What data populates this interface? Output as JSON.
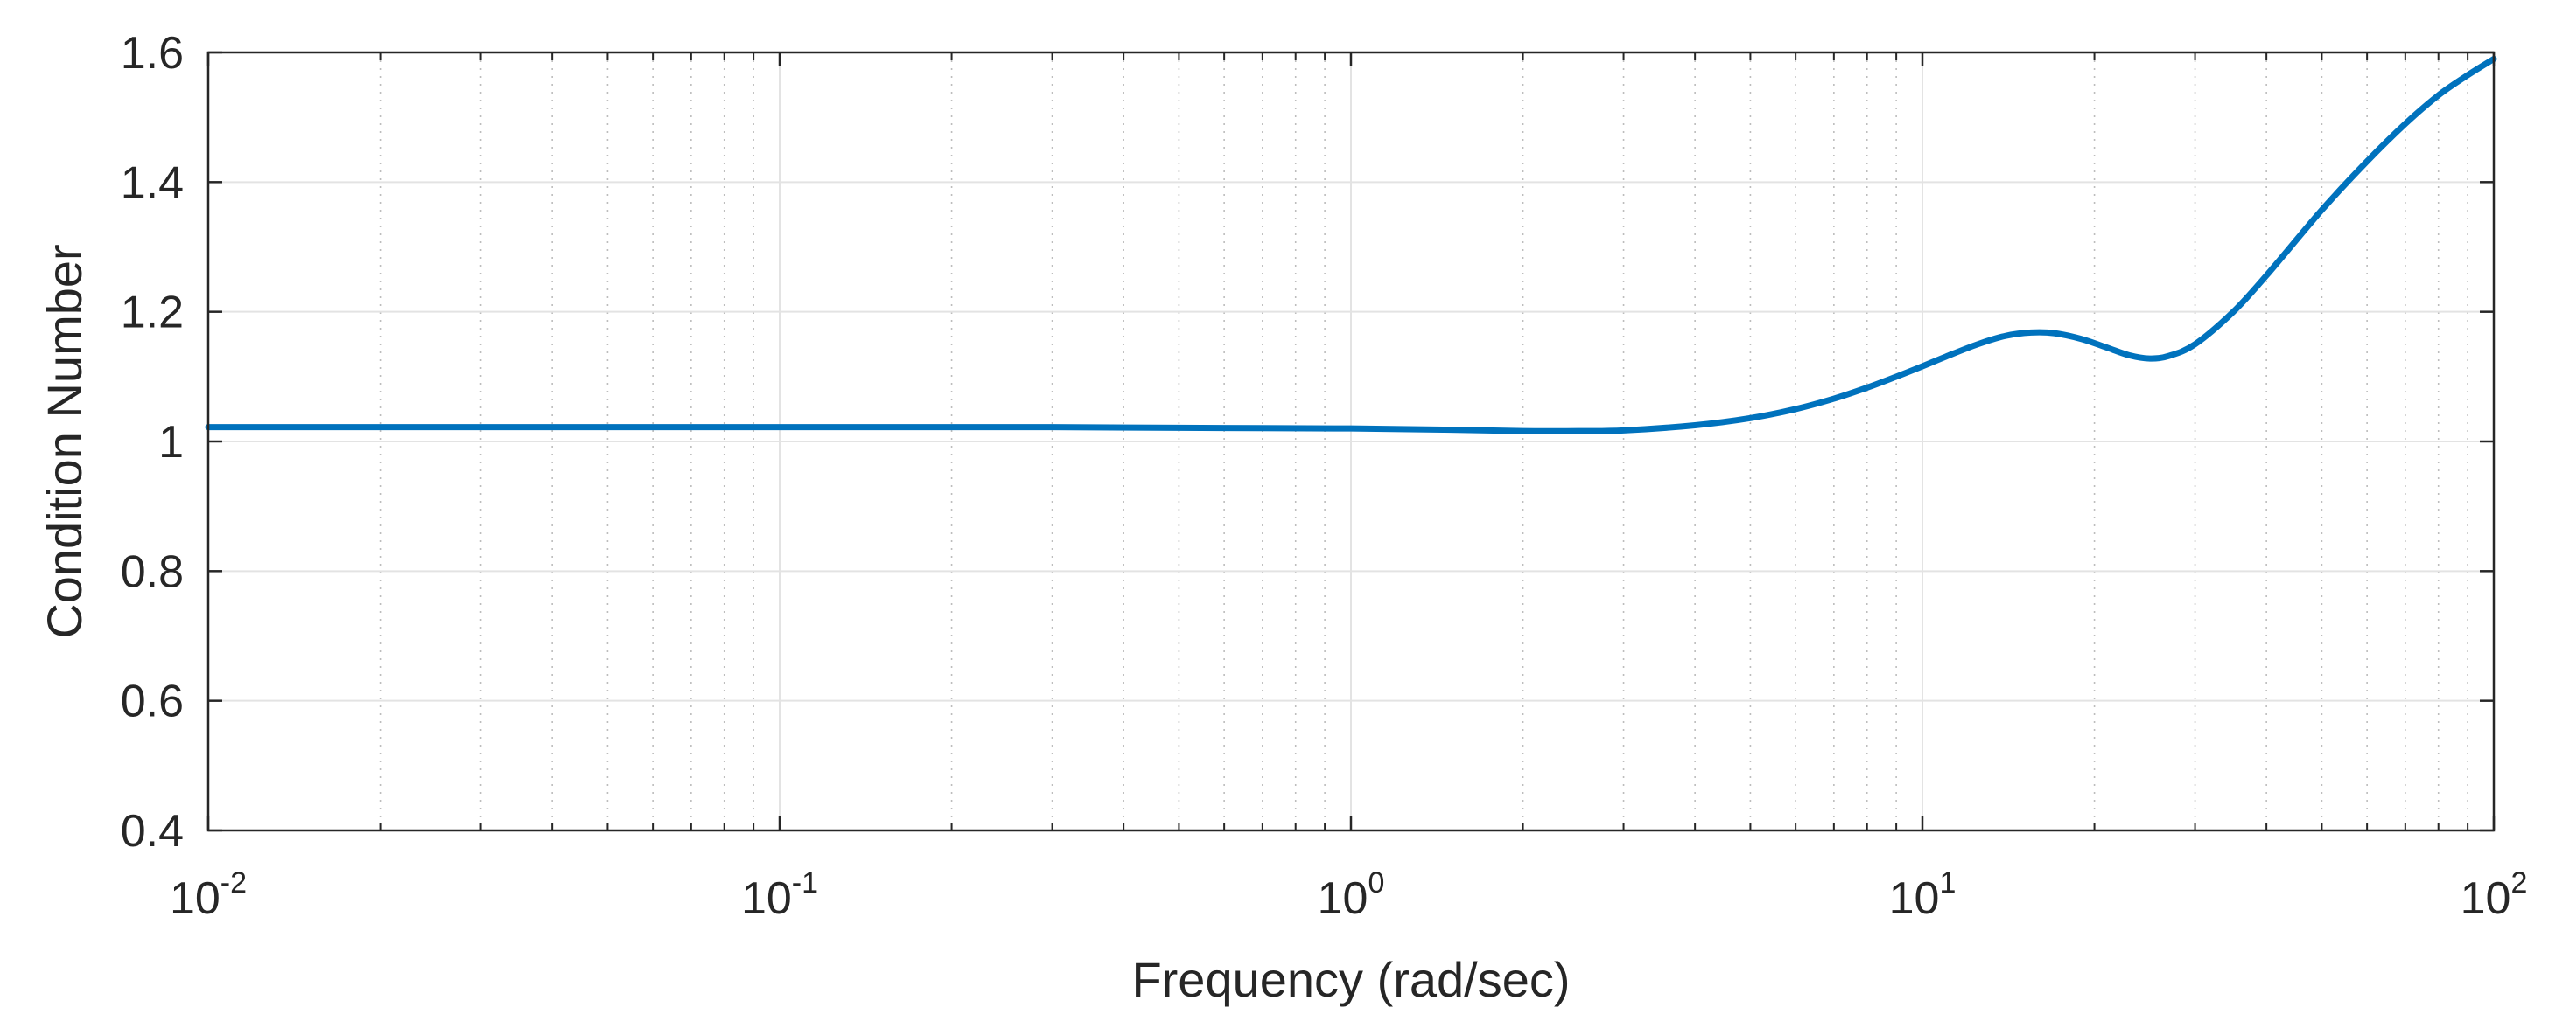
{
  "chart_data": {
    "type": "line",
    "title": "",
    "xlabel": "Frequency (rad/sec)",
    "ylabel": "Condition Number",
    "xscale": "log",
    "xlim": [
      0.01,
      100
    ],
    "ylim": [
      0.4,
      1.6
    ],
    "grid": true,
    "minor_grid": true,
    "yticks": [
      0.4,
      0.6,
      0.8,
      1.0,
      1.2,
      1.4,
      1.6
    ],
    "ytick_labels": [
      "0.4",
      "0.6",
      "0.8",
      "1",
      "1.2",
      "1.4",
      "1.6"
    ],
    "xticks": [
      {
        "value": 0.01,
        "base": "10",
        "exp": "-2"
      },
      {
        "value": 0.1,
        "base": "10",
        "exp": "-1"
      },
      {
        "value": 1,
        "base": "10",
        "exp": "0"
      },
      {
        "value": 10,
        "base": "10",
        "exp": "1"
      },
      {
        "value": 100,
        "base": "10",
        "exp": "2"
      }
    ],
    "series": [
      {
        "name": "Condition Number",
        "color": "#0072BD",
        "points": [
          [
            0.01,
            1.022
          ],
          [
            0.03,
            1.022
          ],
          [
            0.1,
            1.022
          ],
          [
            0.3,
            1.022
          ],
          [
            0.5,
            1.021
          ],
          [
            1.0,
            1.02
          ],
          [
            1.5,
            1.018
          ],
          [
            2.0,
            1.016
          ],
          [
            2.5,
            1.016
          ],
          [
            3.0,
            1.017
          ],
          [
            4.0,
            1.025
          ],
          [
            5.0,
            1.036
          ],
          [
            6.0,
            1.05
          ],
          [
            7.0,
            1.066
          ],
          [
            8.0,
            1.083
          ],
          [
            9.0,
            1.1
          ],
          [
            10.0,
            1.116
          ],
          [
            11.0,
            1.131
          ],
          [
            12.5,
            1.15
          ],
          [
            14.0,
            1.163
          ],
          [
            15.5,
            1.168
          ],
          [
            17.0,
            1.167
          ],
          [
            19.0,
            1.158
          ],
          [
            21.0,
            1.145
          ],
          [
            23.0,
            1.133
          ],
          [
            25.0,
            1.128
          ],
          [
            27.0,
            1.132
          ],
          [
            30.0,
            1.15
          ],
          [
            35.0,
            1.2
          ],
          [
            40.0,
            1.256
          ],
          [
            50.0,
            1.357
          ],
          [
            60.0,
            1.432
          ],
          [
            70.0,
            1.49
          ],
          [
            80.0,
            1.534
          ],
          [
            90.0,
            1.565
          ],
          [
            100.0,
            1.59
          ]
        ]
      }
    ]
  }
}
